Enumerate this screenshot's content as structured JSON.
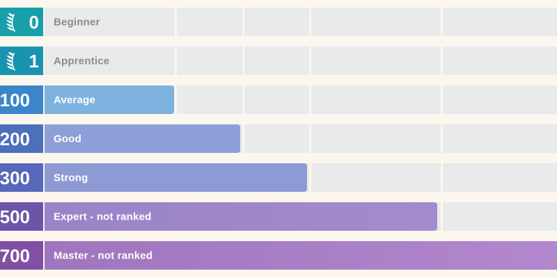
{
  "chart_data": {
    "type": "bar",
    "orientation": "horizontal",
    "title": "",
    "xlabel": "",
    "ylabel": "",
    "legend": "none",
    "grid": "vertical-ticks-at-tier-boundaries",
    "categories": [
      "Beginner",
      "Apprentice",
      "Average",
      "Good",
      "Strong",
      "Expert - not ranked",
      "Master - not ranked"
    ],
    "values": [
      0,
      1,
      100,
      200,
      300,
      500,
      700
    ],
    "rows": [
      {
        "value": "0",
        "label": "Beginner",
        "bar_pct": 0,
        "badge_color": "#17a0aa",
        "bar_color": "",
        "label_color": "#8b8b90",
        "has_icon": true
      },
      {
        "value": "1",
        "label": "Apprentice",
        "bar_pct": 0,
        "badge_color": "#1a94ae",
        "bar_color": "",
        "label_color": "#8b8b90",
        "has_icon": true
      },
      {
        "value": "100",
        "label": "Average",
        "bar_pct": 25.3,
        "badge_color": "#3a86c9",
        "bar_color": "#7eb2df",
        "label_color": "#ffffff",
        "has_icon": false
      },
      {
        "value": "200",
        "label": "Good",
        "bar_pct": 38.2,
        "badge_color": "#4c70bc",
        "bar_color": "#8ca0d7",
        "label_color": "#ffffff",
        "has_icon": false
      },
      {
        "value": "300",
        "label": "Strong",
        "bar_pct": 51.2,
        "badge_color": "#5767ba",
        "bar_color": "#8e9ad4",
        "label_color": "#ffffff",
        "has_icon": false
      },
      {
        "value": "500",
        "label": "Expert - not ranked",
        "bar_pct": 76.6,
        "badge_color": "#6c54a9",
        "bar_color": "linear-gradient(90deg,#9a84c8,#a28bce)",
        "label_color": "#ffffff",
        "has_icon": false
      },
      {
        "value": "700",
        "label": "Master - not ranked",
        "bar_pct": 100,
        "badge_color": "#8150a2",
        "bar_color": "linear-gradient(90deg,#9f76be,#b287ce)",
        "label_color": "#ffffff",
        "has_icon": false
      }
    ],
    "gridlines_pct": [
      25.5,
      38.75,
      51.8,
      77.5
    ],
    "colors": {
      "background": "#fbf6ee",
      "track": "#e9eaea",
      "gridline": "#fbf7f1",
      "muted_label": "#8b8b90",
      "bar_label": "#ffffff"
    },
    "icon": "laurel-branch"
  }
}
